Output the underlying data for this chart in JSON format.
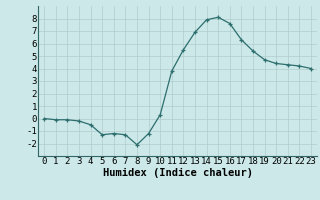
{
  "x": [
    0,
    1,
    2,
    3,
    4,
    5,
    6,
    7,
    8,
    9,
    10,
    11,
    12,
    13,
    14,
    15,
    16,
    17,
    18,
    19,
    20,
    21,
    22,
    23
  ],
  "y": [
    0.0,
    -0.1,
    -0.1,
    -0.2,
    -0.5,
    -1.3,
    -1.2,
    -1.3,
    -2.1,
    -1.2,
    0.3,
    3.8,
    5.5,
    6.9,
    7.9,
    8.1,
    7.6,
    6.3,
    5.4,
    4.7,
    4.4,
    4.3,
    4.2,
    4.0
  ],
  "xlabel": "Humidex (Indice chaleur)",
  "line_color": "#2d6e6e",
  "marker": "+",
  "bg_color": "#cce8e8",
  "grid_color": "#b0cccc",
  "ylim": [
    -3,
    9
  ],
  "xlim": [
    -0.5,
    23.5
  ],
  "yticks": [
    -2,
    -1,
    0,
    1,
    2,
    3,
    4,
    5,
    6,
    7,
    8
  ],
  "xticks": [
    0,
    1,
    2,
    3,
    4,
    5,
    6,
    7,
    8,
    9,
    10,
    11,
    12,
    13,
    14,
    15,
    16,
    17,
    18,
    19,
    20,
    21,
    22,
    23
  ],
  "xlabel_fontsize": 7.5,
  "tick_fontsize": 6.5
}
